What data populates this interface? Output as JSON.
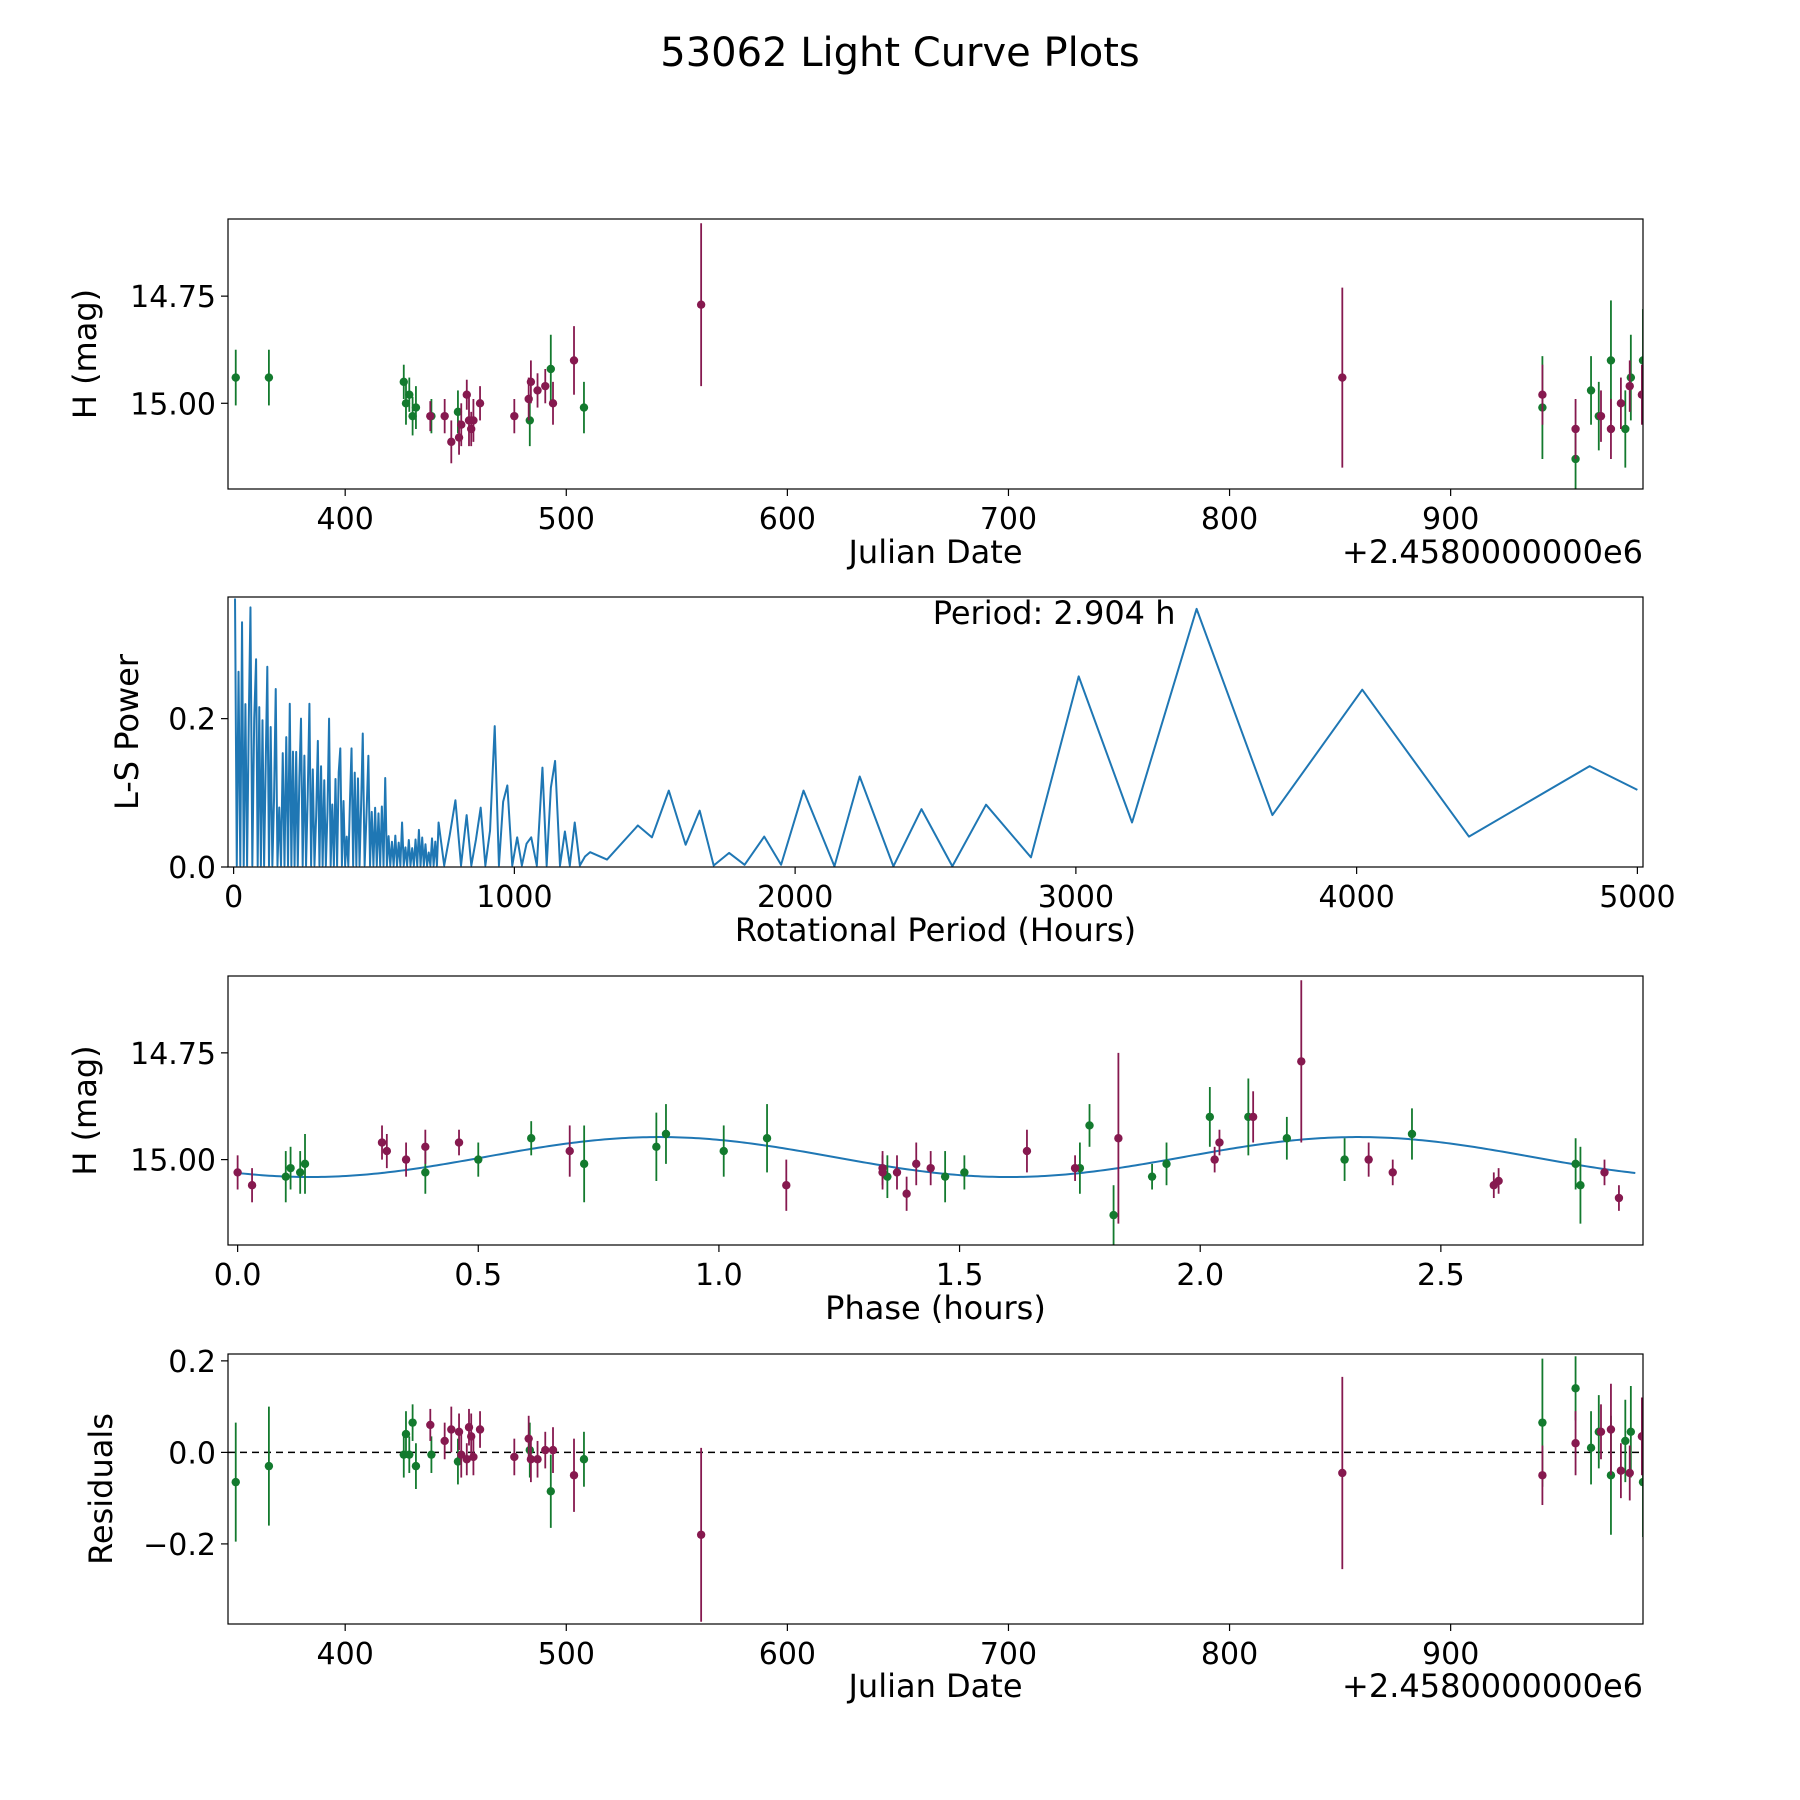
{
  "figure_title": "53062 Light Curve Plots",
  "colors": {
    "band_g": "#137a2e",
    "band_r": "#86194f",
    "model": "#1f77b4",
    "zero_line": "#000000"
  },
  "chart_data": [
    {
      "id": "panel1",
      "type": "scatter",
      "xlabel": "Julian Date",
      "ylabel": "H (mag)",
      "x_offset_label": "+2.4580000000e6",
      "xlim": [
        347,
        987
      ],
      "ylim": [
        15.2,
        14.57
      ],
      "xticks": [
        400,
        500,
        600,
        700,
        800,
        900
      ],
      "xtick_labels": [
        "400",
        "500",
        "600",
        "700",
        "800",
        "900"
      ],
      "yticks": [
        15.0,
        14.75
      ],
      "ytick_labels": [
        "15.00",
        "14.75"
      ],
      "series": [
        {
          "name": "g",
          "color_key": "band_g",
          "points": [
            [
              350.5,
              14.94,
              0.065
            ],
            [
              365.5,
              14.94,
              0.065
            ],
            [
              426.5,
              14.95,
              0.04
            ],
            [
              427.5,
              15.0,
              0.05
            ],
            [
              429,
              14.98,
              0.04
            ],
            [
              430.5,
              15.03,
              0.045
            ],
            [
              432,
              15.01,
              0.05
            ],
            [
              439,
              15.03,
              0.04
            ],
            [
              451,
              15.02,
              0.05
            ],
            [
              483.5,
              15.04,
              0.06
            ],
            [
              493,
              14.92,
              0.08
            ],
            [
              508,
              15.01,
              0.06
            ],
            [
              941.5,
              15.01,
              0.12
            ],
            [
              956.5,
              15.13,
              0.07
            ],
            [
              963.5,
              14.97,
              0.08
            ],
            [
              967,
              15.03,
              0.08
            ],
            [
              972.5,
              14.9,
              0.14
            ],
            [
              979,
              15.06,
              0.09
            ],
            [
              981.5,
              14.94,
              0.1
            ],
            [
              987,
              14.9,
              0.12
            ]
          ]
        },
        {
          "name": "r",
          "color_key": "band_r",
          "points": [
            [
              438.5,
              15.03,
              0.035
            ],
            [
              445,
              15.03,
              0.04
            ],
            [
              448,
              15.09,
              0.05
            ],
            [
              451.5,
              15.08,
              0.04
            ],
            [
              452.5,
              15.05,
              0.05
            ],
            [
              455,
              14.98,
              0.035
            ],
            [
              456,
              15.04,
              0.06
            ],
            [
              457,
              15.06,
              0.04
            ],
            [
              458,
              15.04,
              0.05
            ],
            [
              461,
              15.0,
              0.04
            ],
            [
              476.5,
              15.03,
              0.04
            ],
            [
              483,
              14.99,
              0.05
            ],
            [
              484,
              14.95,
              0.05
            ],
            [
              487,
              14.97,
              0.04
            ],
            [
              490.5,
              14.96,
              0.04
            ],
            [
              494,
              15.0,
              0.05
            ],
            [
              503.5,
              14.9,
              0.08
            ],
            [
              561,
              14.77,
              0.19
            ],
            [
              851,
              14.94,
              0.21
            ],
            [
              941.5,
              14.98,
              0.07
            ],
            [
              956.5,
              15.06,
              0.07
            ],
            [
              968,
              15.03,
              0.06
            ],
            [
              972.5,
              15.06,
              0.07
            ],
            [
              977,
              15.0,
              0.06
            ],
            [
              981,
              14.96,
              0.06
            ],
            [
              986.5,
              14.98,
              0.07
            ]
          ]
        }
      ]
    },
    {
      "id": "panel2",
      "type": "line",
      "xlabel": "Rotational Period (Hours)",
      "ylabel": "L-S Power",
      "annotation": "Period: 2.904 h",
      "xlim": [
        -20,
        5020
      ],
      "ylim": [
        0,
        0.364
      ],
      "xticks": [
        0,
        1000,
        2000,
        3000,
        4000,
        5000
      ],
      "xtick_labels": [
        "0",
        "1000",
        "2000",
        "3000",
        "4000",
        "5000"
      ],
      "yticks": [
        0.0,
        0.2
      ],
      "ytick_labels": [
        "0.0",
        "0.2"
      ],
      "peaks": [
        [
          5,
          0.362
        ],
        [
          30,
          0.33
        ],
        [
          60,
          0.35
        ],
        [
          80,
          0.28
        ],
        [
          120,
          0.27
        ],
        [
          150,
          0.24
        ],
        [
          200,
          0.22
        ],
        [
          240,
          0.2
        ],
        [
          270,
          0.22
        ],
        [
          300,
          0.17
        ],
        [
          340,
          0.2
        ],
        [
          380,
          0.16
        ],
        [
          420,
          0.16
        ],
        [
          460,
          0.18
        ],
        [
          480,
          0.15
        ],
        [
          540,
          0.12
        ],
        [
          600,
          0.06
        ],
        [
          660,
          0.05
        ],
        [
          730,
          0.06
        ],
        [
          790,
          0.09
        ],
        [
          830,
          0.07
        ],
        [
          880,
          0.08
        ],
        [
          930,
          0.19
        ],
        [
          975,
          0.11
        ],
        [
          1010,
          0.04
        ],
        [
          1060,
          0.04
        ],
        [
          1100,
          0.134
        ],
        [
          1145,
          0.143
        ],
        [
          1215,
          0.06
        ],
        [
          1270,
          0.02
        ],
        [
          1330,
          0.01
        ],
        [
          1440,
          0.056
        ],
        [
          1550,
          0.103
        ],
        [
          1660,
          0.076
        ],
        [
          1765,
          0.019
        ],
        [
          1890,
          0.041
        ],
        [
          2030,
          0.103
        ],
        [
          2230,
          0.122
        ],
        [
          2450,
          0.078
        ],
        [
          2680,
          0.084
        ],
        [
          3010,
          0.257
        ],
        [
          3430,
          0.348
        ],
        [
          4020,
          0.239
        ],
        [
          4830,
          0.136
        ]
      ],
      "troughs": [
        [
          1490,
          0.04
        ],
        [
          1610,
          0.03
        ],
        [
          1710,
          0.002
        ],
        [
          1820,
          0.003
        ],
        [
          1950,
          0.003
        ],
        [
          2140,
          0.001
        ],
        [
          2350,
          0.001
        ],
        [
          2560,
          0.001
        ],
        [
          2840,
          0.013
        ],
        [
          3200,
          0.06
        ],
        [
          3700,
          0.07
        ],
        [
          4400,
          0.041
        ],
        [
          5000,
          0.104
        ]
      ]
    },
    {
      "id": "panel3",
      "type": "scatter",
      "xlabel": "Phase (hours)",
      "ylabel": "H (mag)",
      "xlim": [
        -0.02,
        2.92
      ],
      "ylim": [
        15.2,
        14.57
      ],
      "xticks": [
        0.0,
        0.5,
        1.0,
        1.5,
        2.0,
        2.5
      ],
      "xtick_labels": [
        "0.0",
        "0.5",
        "1.0",
        "1.5",
        "2.0",
        "2.5"
      ],
      "yticks": [
        15.0,
        14.75
      ],
      "ytick_labels": [
        "15.00",
        "14.75"
      ],
      "model": {
        "mean": 14.994,
        "amplitude": 0.052,
        "period": 1.452,
        "phase0": 0.15
      },
      "series": [
        {
          "name": "g",
          "color_key": "band_g",
          "points": [
            [
              0.1,
              15.04,
              0.06
            ],
            [
              0.11,
              15.02,
              0.05
            ],
            [
              0.13,
              15.03,
              0.05
            ],
            [
              0.14,
              15.01,
              0.07
            ],
            [
              0.39,
              15.03,
              0.05
            ],
            [
              0.5,
              15.0,
              0.04
            ],
            [
              0.61,
              14.95,
              0.04
            ],
            [
              0.72,
              15.01,
              0.09
            ],
            [
              0.87,
              14.97,
              0.08
            ],
            [
              0.89,
              14.94,
              0.07
            ],
            [
              1.01,
              14.98,
              0.06
            ],
            [
              1.1,
              14.95,
              0.08
            ],
            [
              1.35,
              15.04,
              0.05
            ],
            [
              1.47,
              15.04,
              0.06
            ],
            [
              1.51,
              15.03,
              0.04
            ],
            [
              1.75,
              15.02,
              0.06
            ],
            [
              1.77,
              14.92,
              0.05
            ],
            [
              1.82,
              15.13,
              0.07
            ],
            [
              1.9,
              15.04,
              0.03
            ],
            [
              1.93,
              15.01,
              0.05
            ],
            [
              2.02,
              14.9,
              0.07
            ],
            [
              2.1,
              14.9,
              0.09
            ],
            [
              2.18,
              14.95,
              0.05
            ],
            [
              2.3,
              15.0,
              0.05
            ],
            [
              2.44,
              14.94,
              0.06
            ],
            [
              2.78,
              15.01,
              0.06
            ],
            [
              2.79,
              15.06,
              0.09
            ]
          ]
        },
        {
          "name": "r",
          "color_key": "band_r",
          "points": [
            [
              0.0,
              15.03,
              0.04
            ],
            [
              0.03,
              15.06,
              0.04
            ],
            [
              0.3,
              14.96,
              0.04
            ],
            [
              0.31,
              14.98,
              0.04
            ],
            [
              0.35,
              15.0,
              0.04
            ],
            [
              0.39,
              14.97,
              0.04
            ],
            [
              0.46,
              14.96,
              0.03
            ],
            [
              0.69,
              14.98,
              0.06
            ],
            [
              1.14,
              15.06,
              0.06
            ],
            [
              1.34,
              15.02,
              0.04
            ],
            [
              1.34,
              15.03,
              0.04
            ],
            [
              1.37,
              15.03,
              0.04
            ],
            [
              1.39,
              15.08,
              0.04
            ],
            [
              1.41,
              15.01,
              0.05
            ],
            [
              1.44,
              15.02,
              0.04
            ],
            [
              1.64,
              14.98,
              0.05
            ],
            [
              1.74,
              15.02,
              0.03
            ],
            [
              1.83,
              14.95,
              0.2
            ],
            [
              2.03,
              15.0,
              0.03
            ],
            [
              2.04,
              14.96,
              0.03
            ],
            [
              2.11,
              14.9,
              0.06
            ],
            [
              2.21,
              14.77,
              0.19
            ],
            [
              2.35,
              15.0,
              0.04
            ],
            [
              2.4,
              15.03,
              0.03
            ],
            [
              2.61,
              15.06,
              0.03
            ],
            [
              2.62,
              15.05,
              0.03
            ],
            [
              2.84,
              15.03,
              0.03
            ],
            [
              2.87,
              15.09,
              0.03
            ]
          ]
        }
      ]
    },
    {
      "id": "panel4",
      "type": "scatter",
      "xlabel": "Julian Date",
      "ylabel": "Residuals",
      "x_offset_label": "+2.4580000000e6",
      "xlim": [
        347,
        987
      ],
      "ylim": [
        -0.375,
        0.215
      ],
      "xticks": [
        400,
        500,
        600,
        700,
        800,
        900
      ],
      "xtick_labels": [
        "400",
        "500",
        "600",
        "700",
        "800",
        "900"
      ],
      "yticks": [
        0.2,
        0.0,
        -0.2
      ],
      "ytick_labels": [
        "0.2",
        "0.0",
        "−0.2"
      ],
      "series": [
        {
          "name": "g",
          "color_key": "band_g",
          "points": [
            [
              350.5,
              -0.065,
              0.13
            ],
            [
              365.5,
              -0.03,
              0.13
            ],
            [
              426.5,
              -0.005,
              0.05
            ],
            [
              427.5,
              0.04,
              0.05
            ],
            [
              429,
              -0.005,
              0.04
            ],
            [
              430.5,
              0.065,
              0.04
            ],
            [
              432,
              -0.03,
              0.05
            ],
            [
              439,
              -0.005,
              0.04
            ],
            [
              451,
              -0.02,
              0.05
            ],
            [
              483.5,
              0.005,
              0.06
            ],
            [
              493,
              -0.085,
              0.08
            ],
            [
              508,
              -0.015,
              0.06
            ],
            [
              941.5,
              0.065,
              0.14
            ],
            [
              956.5,
              0.14,
              0.07
            ],
            [
              963.5,
              0.01,
              0.08
            ],
            [
              967,
              0.045,
              0.08
            ],
            [
              972.5,
              -0.05,
              0.13
            ],
            [
              979,
              0.025,
              0.09
            ],
            [
              981.5,
              0.045,
              0.1
            ],
            [
              987,
              -0.065,
              0.12
            ]
          ]
        },
        {
          "name": "r",
          "color_key": "band_r",
          "points": [
            [
              438.5,
              0.06,
              0.035
            ],
            [
              445,
              0.025,
              0.04
            ],
            [
              448,
              0.05,
              0.05
            ],
            [
              451.5,
              0.045,
              0.04
            ],
            [
              452.5,
              -0.005,
              0.05
            ],
            [
              455,
              -0.015,
              0.035
            ],
            [
              456,
              0.055,
              0.04
            ],
            [
              457,
              0.035,
              0.05
            ],
            [
              458,
              -0.01,
              0.04
            ],
            [
              461,
              0.05,
              0.04
            ],
            [
              476.5,
              -0.01,
              0.04
            ],
            [
              483,
              0.03,
              0.05
            ],
            [
              484,
              -0.015,
              0.05
            ],
            [
              487,
              -0.015,
              0.04
            ],
            [
              490.5,
              0.005,
              0.04
            ],
            [
              494,
              0.005,
              0.05
            ],
            [
              503.5,
              -0.05,
              0.08
            ],
            [
              561,
              -0.18,
              0.19
            ],
            [
              851,
              -0.045,
              0.21
            ],
            [
              941.5,
              -0.05,
              0.065
            ],
            [
              956.5,
              0.02,
              0.07
            ],
            [
              968,
              0.045,
              0.06
            ],
            [
              972.5,
              0.05,
              0.1
            ],
            [
              977,
              -0.04,
              0.06
            ],
            [
              981,
              -0.045,
              0.06
            ],
            [
              986.5,
              0.035,
              0.085
            ]
          ]
        }
      ]
    }
  ]
}
